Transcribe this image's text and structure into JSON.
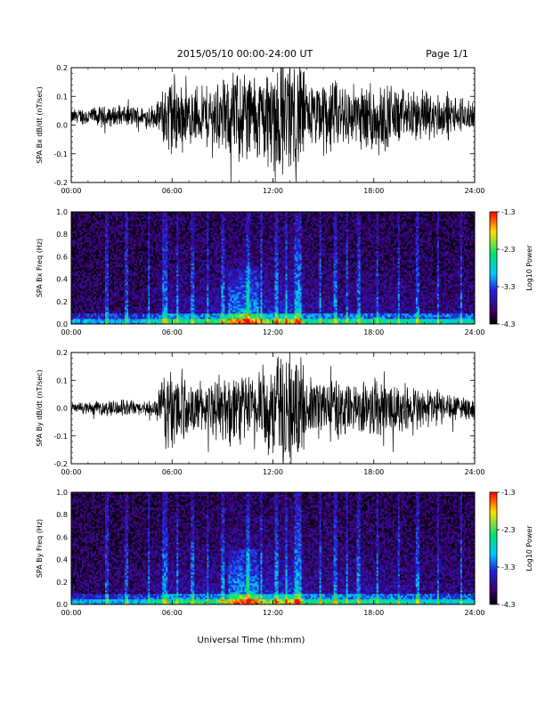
{
  "header": {
    "title": "2015/05/10  00:00-24:00 UT",
    "page": "Page 1/1"
  },
  "x_axis_title": "Universal Time (hh:mm)",
  "colors": {
    "trace": "#000000",
    "colormap": [
      "#000000",
      "#3a0066",
      "#2222dd",
      "#00c8ff",
      "#00e070",
      "#ffe000",
      "#ff0000"
    ]
  },
  "chart_data": [
    {
      "type": "line",
      "ylabel": "SPA Bx dB/dt (nT/sec)",
      "xlim": [
        0,
        24
      ],
      "x_tick_labels": [
        "00:00",
        "06:00",
        "12:00",
        "18:00",
        "24:00"
      ],
      "ylim": [
        -0.2,
        0.2
      ],
      "y_tick_labels": [
        "0.2",
        "0.1",
        "0.0",
        "-0.1",
        "-0.2"
      ],
      "envelope": {
        "hours": [
          0,
          1,
          2,
          3,
          4,
          5,
          5.5,
          6,
          7,
          8,
          9,
          10,
          11,
          12,
          13,
          13.5,
          14,
          15,
          16,
          17,
          18,
          19,
          20,
          21,
          22,
          23,
          24
        ],
        "amplitude": [
          0.03,
          0.035,
          0.04,
          0.04,
          0.04,
          0.045,
          0.12,
          0.18,
          0.11,
          0.12,
          0.14,
          0.2,
          0.17,
          0.22,
          0.25,
          0.25,
          0.13,
          0.15,
          0.14,
          0.12,
          0.16,
          0.12,
          0.1,
          0.1,
          0.09,
          0.07,
          0.05
        ]
      },
      "offset": 0.03
    },
    {
      "type": "heatmap",
      "ylabel": "SPA Bx Freq (Hz)",
      "xlim": [
        0,
        24
      ],
      "x_tick_labels": [
        "00:00",
        "06:00",
        "12:00",
        "18:00",
        "24:00"
      ],
      "ylim": [
        0,
        1.0
      ],
      "y_tick_labels": [
        "1.0",
        "0.8",
        "0.6",
        "0.4",
        "0.2",
        "0.0"
      ],
      "colorbar": {
        "label": "Log10 Power",
        "range": [
          -4.3,
          -1.3
        ],
        "tick_labels": [
          "-1.3",
          "-2.3",
          "-3.3",
          "-4.3"
        ]
      },
      "activity": {
        "hours": [
          0,
          2,
          4,
          5.5,
          6,
          7,
          8,
          9,
          10,
          11,
          12,
          13,
          13.5,
          14,
          16,
          18,
          20,
          22,
          24
        ],
        "level": [
          0.15,
          0.15,
          0.2,
          0.35,
          0.5,
          0.4,
          0.45,
          0.5,
          0.75,
          0.7,
          0.6,
          0.75,
          0.7,
          0.4,
          0.4,
          0.4,
          0.35,
          0.3,
          0.3
        ]
      }
    },
    {
      "type": "line",
      "ylabel": "SPA By dB/dt (nT/sec)",
      "xlim": [
        0,
        24
      ],
      "x_tick_labels": [
        "00:00",
        "06:00",
        "12:00",
        "18:00",
        "24:00"
      ],
      "ylim": [
        -0.2,
        0.2
      ],
      "y_tick_labels": [
        "0.2",
        "0.1",
        "0.0",
        "-0.1",
        "-0.2"
      ],
      "envelope": {
        "hours": [
          0,
          1,
          2,
          3,
          4,
          5,
          5.5,
          6,
          7,
          8,
          9,
          10,
          11,
          12,
          13,
          13.5,
          14,
          15,
          16,
          17,
          18,
          19,
          20,
          21,
          22,
          23,
          24
        ],
        "amplitude": [
          0.02,
          0.025,
          0.03,
          0.03,
          0.03,
          0.035,
          0.14,
          0.2,
          0.1,
          0.11,
          0.14,
          0.16,
          0.14,
          0.22,
          0.25,
          0.25,
          0.12,
          0.13,
          0.12,
          0.1,
          0.14,
          0.1,
          0.09,
          0.08,
          0.07,
          0.05,
          0.04
        ]
      },
      "offset": 0.0
    },
    {
      "type": "heatmap",
      "ylabel": "SPA By Freq (Hz)",
      "xlim": [
        0,
        24
      ],
      "x_tick_labels": [
        "00:00",
        "06:00",
        "12:00",
        "18:00",
        "24:00"
      ],
      "ylim": [
        0,
        1.0
      ],
      "y_tick_labels": [
        "1.0",
        "0.8",
        "0.6",
        "0.4",
        "0.2",
        "0.0"
      ],
      "colorbar": {
        "label": "Log10 Power",
        "range": [
          -4.3,
          -1.3
        ],
        "tick_labels": [
          "-1.3",
          "-2.3",
          "-3.3",
          "-4.3"
        ]
      },
      "activity": {
        "hours": [
          0,
          2,
          4,
          5.5,
          6,
          7,
          8,
          9,
          10,
          11,
          12,
          13,
          13.5,
          14,
          16,
          18,
          20,
          22,
          24
        ],
        "level": [
          0.15,
          0.15,
          0.2,
          0.4,
          0.5,
          0.4,
          0.45,
          0.5,
          0.75,
          0.7,
          0.6,
          0.75,
          0.7,
          0.4,
          0.45,
          0.4,
          0.35,
          0.3,
          0.3
        ]
      }
    }
  ]
}
